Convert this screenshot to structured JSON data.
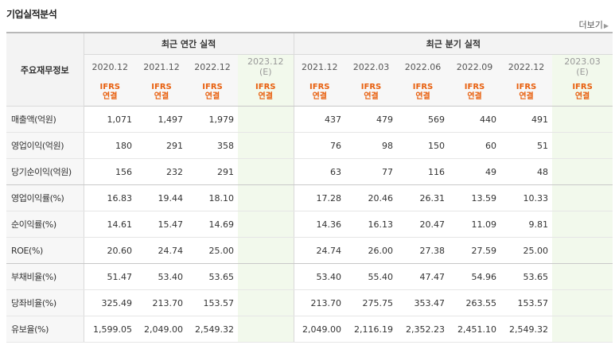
{
  "section_title": "기업실적분석",
  "more_label": "더보기",
  "more_icon": "chevron-right-icon",
  "header": {
    "item_label": "주요재무정보",
    "annual_label": "최근 연간 실적",
    "quarter_label": "최근 분기 실적",
    "annual_periods": [
      {
        "p": "2020.12",
        "e": ""
      },
      {
        "p": "2021.12",
        "e": ""
      },
      {
        "p": "2022.12",
        "e": ""
      },
      {
        "p": "2023.12",
        "e": "(E)"
      }
    ],
    "quarter_periods": [
      {
        "p": "2021.12",
        "e": ""
      },
      {
        "p": "2022.03",
        "e": ""
      },
      {
        "p": "2022.06",
        "e": ""
      },
      {
        "p": "2022.09",
        "e": ""
      },
      {
        "p": "2022.12",
        "e": ""
      },
      {
        "p": "2023.03",
        "e": "(E)"
      }
    ],
    "ifrs_top": "IFRS",
    "ifrs_bottom": "연결"
  },
  "rows": [
    {
      "label": "매출액(억원)",
      "annual": [
        "1,071",
        "1,497",
        "1,979",
        ""
      ],
      "quarter": [
        "437",
        "479",
        "569",
        "440",
        "491",
        ""
      ]
    },
    {
      "label": "영업이익(억원)",
      "annual": [
        "180",
        "291",
        "358",
        ""
      ],
      "quarter": [
        "76",
        "98",
        "150",
        "60",
        "51",
        ""
      ]
    },
    {
      "label": "당기순이익(억원)",
      "annual": [
        "156",
        "232",
        "291",
        ""
      ],
      "quarter": [
        "63",
        "77",
        "116",
        "49",
        "48",
        ""
      ]
    },
    {
      "label": "영업이익률(%)",
      "annual": [
        "16.83",
        "19.44",
        "18.10",
        ""
      ],
      "quarter": [
        "17.28",
        "20.46",
        "26.31",
        "13.59",
        "10.33",
        ""
      ]
    },
    {
      "label": "순이익률(%)",
      "annual": [
        "14.61",
        "15.47",
        "14.69",
        ""
      ],
      "quarter": [
        "14.36",
        "16.13",
        "20.47",
        "11.09",
        "9.81",
        ""
      ]
    },
    {
      "label": "ROE(%)",
      "annual": [
        "20.60",
        "24.74",
        "25.00",
        ""
      ],
      "quarter": [
        "24.74",
        "26.00",
        "27.38",
        "27.59",
        "25.00",
        ""
      ]
    },
    {
      "label": "부채비율(%)",
      "annual": [
        "51.47",
        "53.40",
        "53.65",
        ""
      ],
      "quarter": [
        "53.40",
        "55.40",
        "47.47",
        "54.96",
        "53.65",
        ""
      ]
    },
    {
      "label": "당좌비율(%)",
      "annual": [
        "325.49",
        "213.70",
        "153.57",
        ""
      ],
      "quarter": [
        "213.70",
        "275.75",
        "353.47",
        "263.55",
        "153.57",
        ""
      ]
    },
    {
      "label": "유보율(%)",
      "annual": [
        "1,599.05",
        "2,049.00",
        "2,549.32",
        ""
      ],
      "quarter": [
        "2,049.00",
        "2,116.19",
        "2,352.23",
        "2,451.10",
        "2,549.32",
        ""
      ]
    }
  ],
  "colors": {
    "ifrs": "#e8600f",
    "estimate_bg": "#f2f9ec",
    "header_bg": "#f3f3f3"
  }
}
